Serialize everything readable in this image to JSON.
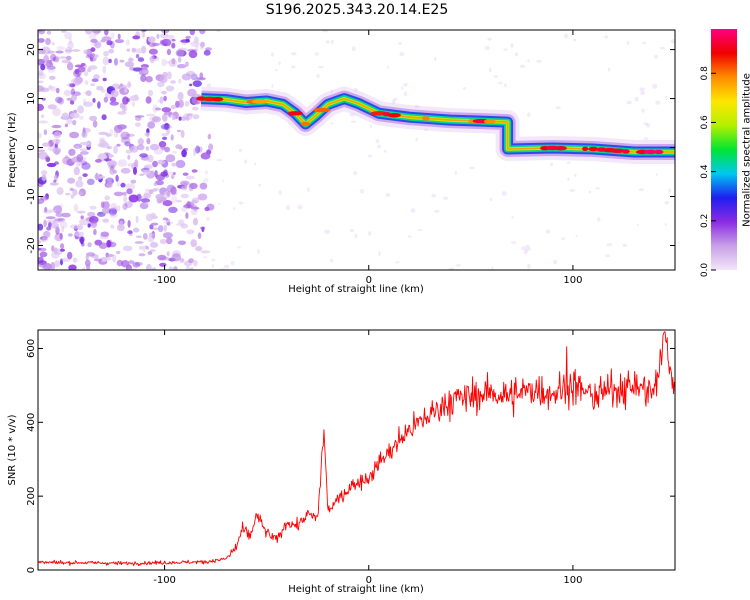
{
  "title": "S196.2025.343.20.14.E25",
  "chart_data": [
    {
      "type": "heatmap",
      "xlabel": "Height of straight line (km)",
      "ylabel": "Frequency (Hz)",
      "xlim": [
        -162,
        150
      ],
      "ylim": [
        -25,
        24
      ],
      "xticks": [
        -100,
        0,
        100
      ],
      "yticks": [
        -20,
        -10,
        0,
        10,
        20
      ],
      "noise_region_x": [
        -162,
        -82
      ],
      "track": [
        {
          "x": -82,
          "y": 10
        },
        {
          "x": -70,
          "y": 9.8
        },
        {
          "x": -60,
          "y": 9.2
        },
        {
          "x": -50,
          "y": 9.5
        },
        {
          "x": -42,
          "y": 8.8
        },
        {
          "x": -36,
          "y": 7.0
        },
        {
          "x": -31,
          "y": 4.8
        },
        {
          "x": -26,
          "y": 6.5
        },
        {
          "x": -20,
          "y": 8.8
        },
        {
          "x": -12,
          "y": 10.0
        },
        {
          "x": -5,
          "y": 9.0
        },
        {
          "x": 5,
          "y": 7.0
        },
        {
          "x": 20,
          "y": 6.2
        },
        {
          "x": 40,
          "y": 5.6
        },
        {
          "x": 55,
          "y": 5.4
        },
        {
          "x": 68,
          "y": 5.2
        },
        {
          "x": 68,
          "y": -0.3
        },
        {
          "x": 90,
          "y": -0.1
        },
        {
          "x": 110,
          "y": -0.3
        },
        {
          "x": 130,
          "y": -0.9
        },
        {
          "x": 150,
          "y": -0.9
        }
      ],
      "colorbar": {
        "label": "Normalized spectral amplitude",
        "range": [
          0.0,
          0.98
        ],
        "ticks": [
          "0.0",
          "0.2",
          "0.4",
          "0.6",
          "0.8"
        ],
        "colors": [
          "#f2e6f8",
          "#c8a0e8",
          "#8a2be2",
          "#1e1ef0",
          "#00c8f0",
          "#00e632",
          "#b4f000",
          "#ffe600",
          "#ff8c00",
          "#f00000",
          "#ff0080"
        ]
      }
    },
    {
      "type": "line",
      "xlabel": "Height of straight line (km)",
      "ylabel": "SNR (10 * v/v)",
      "xlim": [
        -162,
        150
      ],
      "ylim": [
        0,
        650
      ],
      "xticks": [
        -100,
        0,
        100
      ],
      "yticks": [
        0,
        200,
        400,
        600
      ],
      "color": "#ff0000",
      "series": [
        {
          "name": "SNR",
          "x": [
            -162,
            -140,
            -120,
            -100,
            -80,
            -70,
            -65,
            -62,
            -58,
            -55,
            -50,
            -45,
            -40,
            -35,
            -30,
            -25,
            -22,
            -20,
            -15,
            -10,
            -5,
            0,
            5,
            10,
            15,
            20,
            25,
            30,
            35,
            40,
            50,
            60,
            70,
            80,
            90,
            100,
            110,
            120,
            130,
            140,
            145,
            150
          ],
          "y": [
            20,
            20,
            18,
            20,
            22,
            30,
            60,
            110,
            90,
            150,
            100,
            80,
            130,
            120,
            150,
            140,
            380,
            160,
            190,
            220,
            240,
            250,
            290,
            320,
            350,
            380,
            400,
            420,
            440,
            460,
            470,
            480,
            470,
            490,
            480,
            500,
            470,
            490,
            500,
            480,
            640,
            470
          ]
        }
      ],
      "peaks": [
        {
          "x": -22,
          "y": 380
        },
        {
          "x": 97,
          "y": 605
        },
        {
          "x": 145,
          "y": 645
        }
      ]
    }
  ]
}
